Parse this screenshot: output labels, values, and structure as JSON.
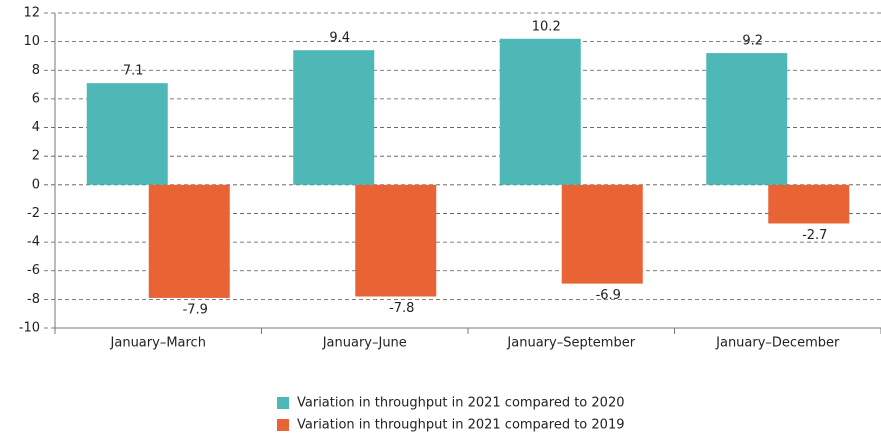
{
  "chart_data": {
    "type": "bar",
    "categories": [
      "January–March",
      "January–June",
      "January–September",
      "January–December"
    ],
    "series": [
      {
        "name": "Variation in throughput in 2021 compared to 2020",
        "color": "#4db8b6",
        "values": [
          7.1,
          9.4,
          10.2,
          9.2
        ]
      },
      {
        "name": "Variation in throughput in 2021 compared to 2019",
        "color": "#e86434",
        "values": [
          -7.9,
          -7.8,
          -6.9,
          -2.7
        ]
      }
    ],
    "ylim": [
      -10,
      12
    ],
    "yticks": [
      -10,
      -8,
      -6,
      -4,
      -2,
      0,
      2,
      4,
      6,
      8,
      10,
      12
    ],
    "grid": true,
    "legend": "bottom"
  }
}
